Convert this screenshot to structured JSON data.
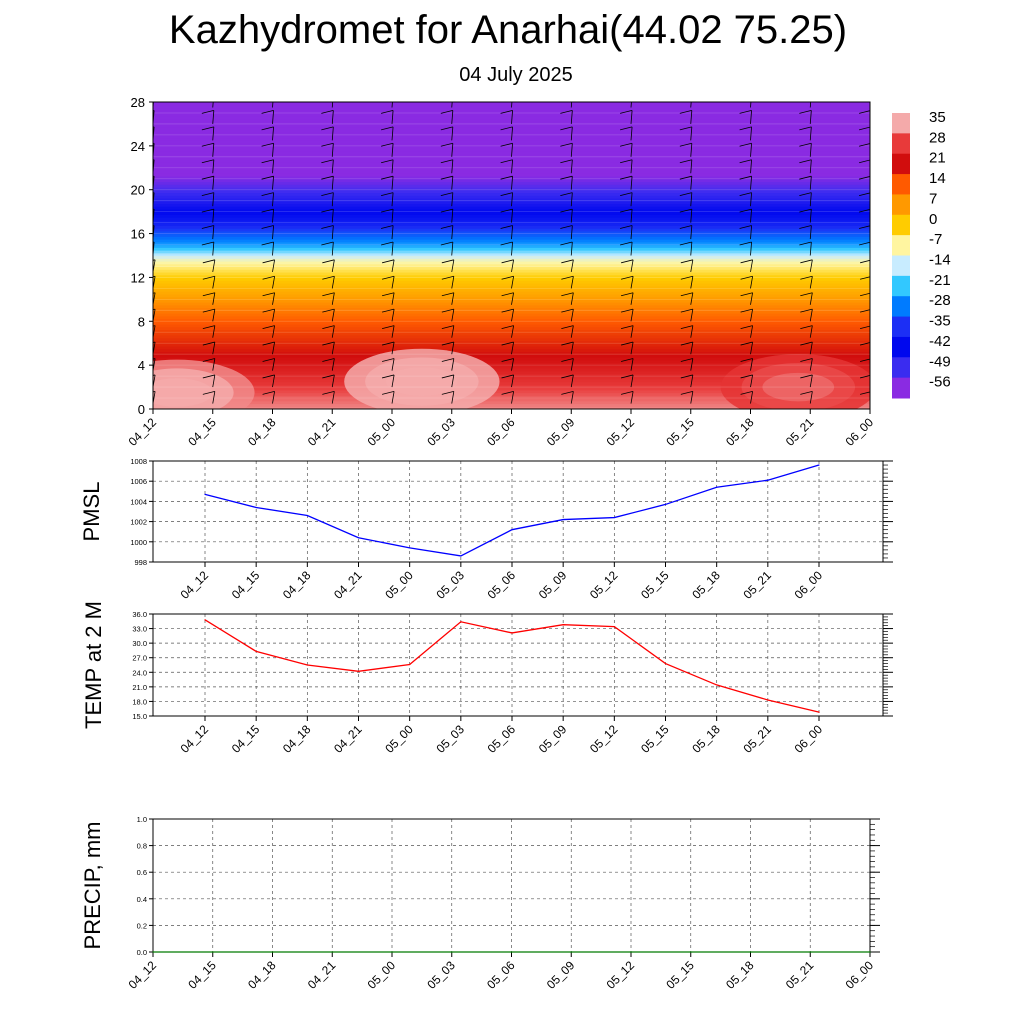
{
  "page": {
    "title": "Kazhydromet for Anarhai(44.02 75.25)",
    "subtitle": "04 July 2025"
  },
  "chart_data": [
    {
      "type": "heatmap",
      "name": "temperature_cross_section",
      "x_tick_labels": [
        "04_12",
        "04_15",
        "04_18",
        "04_21",
        "05_00",
        "05_03",
        "05_06",
        "05_09",
        "05_12",
        "05_15",
        "05_18",
        "05_21",
        "06_00"
      ],
      "y_ticks": [
        0,
        4,
        8,
        12,
        16,
        20,
        24,
        28
      ],
      "ylim": [
        0,
        28
      ],
      "colorbar": {
        "labels": [
          "35",
          "28",
          "21",
          "14",
          "7",
          "0",
          "-7",
          "-14",
          "-21",
          "-28",
          "-35",
          "-42",
          "-49",
          "-56"
        ],
        "colors": [
          "#f4aaaa",
          "#e83a3a",
          "#d10d0d",
          "#ff5a00",
          "#ff9900",
          "#ffcc00",
          "#fff5a0",
          "#c8ecff",
          "#32c8ff",
          "#007bff",
          "#1c2ff5",
          "#0008ee",
          "#3a2cf0",
          "#8a2be2"
        ]
      },
      "levels": [
        {
          "height": 0,
          "temp": 33
        },
        {
          "height": 4,
          "temp": 23
        },
        {
          "height": 8,
          "temp": 14
        },
        {
          "height": 12,
          "temp": 0
        },
        {
          "height": 13.5,
          "temp": -8
        },
        {
          "height": 15,
          "temp": -25
        },
        {
          "height": 17,
          "temp": -38
        },
        {
          "height": 20,
          "temp": -50
        },
        {
          "height": 21.5,
          "temp": -57
        },
        {
          "height": 28,
          "temp": -59
        }
      ],
      "warm_cores": [
        {
          "x": 0.4,
          "height": 1.5,
          "temp": 36
        },
        {
          "x": 4.5,
          "height": 2.5,
          "temp": 38
        },
        {
          "x": 10.8,
          "height": 2,
          "temp": 30
        }
      ],
      "wind_barbs": "present"
    },
    {
      "type": "line",
      "ylabel": "PMSL",
      "categories": [
        "04_12",
        "04_15",
        "04_18",
        "04_21",
        "05_00",
        "05_03",
        "05_06",
        "05_09",
        "05_12",
        "05_15",
        "05_18",
        "05_21",
        "06_00"
      ],
      "ylim": [
        998,
        1008
      ],
      "y_ticks": [
        998,
        1000,
        1002,
        1004,
        1006,
        1008
      ],
      "y_tick_labels": [
        "998",
        "1000",
        "1002",
        "1004",
        "1006",
        "1008"
      ],
      "color": "#0000ff",
      "values": [
        1004.7,
        1003.4,
        1002.6,
        1000.4,
        999.4,
        998.6,
        1001.2,
        1002.2,
        1002.4,
        1003.7,
        1005.4,
        1006.1,
        1007.6
      ],
      "grid": true
    },
    {
      "type": "line",
      "ylabel": "TEMP at 2 M",
      "categories": [
        "04_12",
        "04_15",
        "04_18",
        "04_21",
        "05_00",
        "05_03",
        "05_06",
        "05_09",
        "05_12",
        "05_15",
        "05_18",
        "05_21",
        "06_00"
      ],
      "ylim": [
        15,
        36
      ],
      "y_ticks": [
        15,
        18,
        21,
        24,
        27,
        30,
        33,
        36
      ],
      "y_tick_labels": [
        "15.0",
        "18.0",
        "21.0",
        "24.0",
        "27.0",
        "30.0",
        "33.0",
        "36.0"
      ],
      "color": "#ff0000",
      "values": [
        34.8,
        28.3,
        25.5,
        24.2,
        25.6,
        34.4,
        32.1,
        33.8,
        33.4,
        25.8,
        21.4,
        18.3,
        15.8
      ],
      "grid": true
    },
    {
      "type": "line",
      "ylabel": "PRECIP, mm",
      "categories": [
        "04_12",
        "04_15",
        "04_18",
        "04_21",
        "05_00",
        "05_03",
        "05_06",
        "05_09",
        "05_12",
        "05_15",
        "05_18",
        "05_21",
        "06_00"
      ],
      "ylim": [
        0,
        1
      ],
      "y_ticks": [
        0,
        0.2,
        0.4,
        0.6,
        0.8,
        1.0
      ],
      "y_tick_labels": [
        "0.0",
        "0.2",
        "0.4",
        "0.6",
        "0.8",
        "1.0"
      ],
      "color": "#007a00",
      "values": [
        0,
        0,
        0,
        0,
        0,
        0,
        0,
        0,
        0,
        0,
        0,
        0,
        0
      ],
      "grid": true
    }
  ]
}
